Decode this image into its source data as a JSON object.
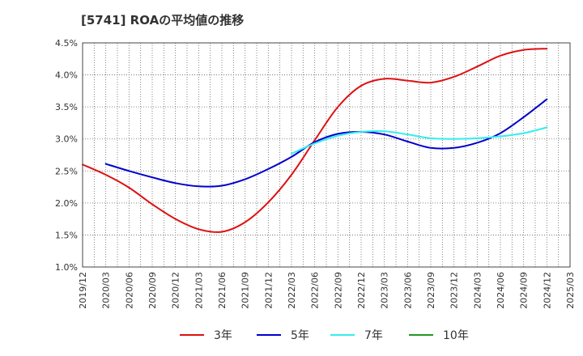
{
  "chart_data": {
    "type": "line",
    "title": "[5741]  ROAの平均値の推移",
    "xlabel": "",
    "ylabel": "",
    "ylim": [
      1.0,
      4.5
    ],
    "y_ticks": [
      "1.0%",
      "1.5%",
      "2.0%",
      "2.5%",
      "3.0%",
      "3.5%",
      "4.0%",
      "4.5%"
    ],
    "x_ticks": [
      "2019/12",
      "2020/03",
      "2020/06",
      "2020/09",
      "2020/12",
      "2021/03",
      "2021/06",
      "2021/09",
      "2021/12",
      "2022/03",
      "2022/06",
      "2022/09",
      "2022/12",
      "2023/03",
      "2023/06",
      "2023/09",
      "2023/12",
      "2024/03",
      "2024/06",
      "2024/09",
      "2024/12",
      "2025/03"
    ],
    "grid": true,
    "legend_position": "bottom",
    "series": [
      {
        "name": "3年",
        "color": "#dd1111",
        "points": [
          [
            "2019/12",
            2.6
          ],
          [
            "2020/03",
            2.44
          ],
          [
            "2020/06",
            2.24
          ],
          [
            "2020/09",
            1.98
          ],
          [
            "2020/12",
            1.75
          ],
          [
            "2021/03",
            1.59
          ],
          [
            "2021/06",
            1.55
          ],
          [
            "2021/09",
            1.7
          ],
          [
            "2021/12",
            2.01
          ],
          [
            "2022/03",
            2.44
          ],
          [
            "2022/06",
            2.98
          ],
          [
            "2022/09",
            3.5
          ],
          [
            "2022/12",
            3.83
          ],
          [
            "2023/03",
            3.94
          ],
          [
            "2023/06",
            3.91
          ],
          [
            "2023/09",
            3.88
          ],
          [
            "2023/12",
            3.97
          ],
          [
            "2024/03",
            4.13
          ],
          [
            "2024/06",
            4.3
          ],
          [
            "2024/09",
            4.39
          ],
          [
            "2024/12",
            4.41
          ]
        ]
      },
      {
        "name": "5年",
        "color": "#0000cc",
        "points": [
          [
            "2020/03",
            2.61
          ],
          [
            "2020/06",
            2.5
          ],
          [
            "2020/09",
            2.4
          ],
          [
            "2020/12",
            2.31
          ],
          [
            "2021/03",
            2.26
          ],
          [
            "2021/06",
            2.27
          ],
          [
            "2021/09",
            2.37
          ],
          [
            "2021/12",
            2.53
          ],
          [
            "2022/03",
            2.72
          ],
          [
            "2022/06",
            2.95
          ],
          [
            "2022/09",
            3.08
          ],
          [
            "2022/12",
            3.11
          ],
          [
            "2023/03",
            3.07
          ],
          [
            "2023/06",
            2.96
          ],
          [
            "2023/09",
            2.86
          ],
          [
            "2023/12",
            2.86
          ],
          [
            "2024/03",
            2.94
          ],
          [
            "2024/06",
            3.09
          ],
          [
            "2024/09",
            3.34
          ],
          [
            "2024/12",
            3.62
          ]
        ]
      },
      {
        "name": "7年",
        "color": "#33eeee",
        "points": [
          [
            "2022/03",
            2.77
          ],
          [
            "2022/06",
            2.93
          ],
          [
            "2022/09",
            3.05
          ],
          [
            "2022/12",
            3.11
          ],
          [
            "2023/03",
            3.12
          ],
          [
            "2023/06",
            3.07
          ],
          [
            "2023/09",
            3.01
          ],
          [
            "2023/12",
            3.0
          ],
          [
            "2024/03",
            3.01
          ],
          [
            "2024/06",
            3.04
          ],
          [
            "2024/09",
            3.09
          ],
          [
            "2024/12",
            3.18
          ]
        ]
      },
      {
        "name": "10年",
        "color": "#229922",
        "points": []
      }
    ]
  }
}
